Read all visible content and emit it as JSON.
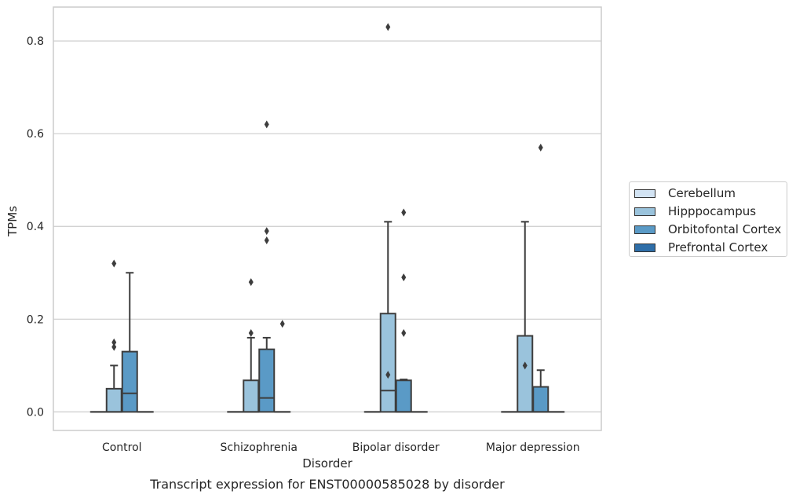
{
  "chart_data": {
    "type": "box",
    "title": "Transcript expression for ENST00000585028 by disorder",
    "xlabel": "Disorder",
    "ylabel": "TPMs",
    "ylim": [
      -0.04,
      0.873
    ],
    "yticks": [
      "0.0",
      "0.2",
      "0.4",
      "0.6",
      "0.8"
    ],
    "ytick_values": [
      0.0,
      0.2,
      0.4,
      0.6,
      0.8
    ],
    "categories": [
      "Control",
      "Schizophrenia",
      "Bipolar disorder",
      "Major depression"
    ],
    "grid": "horizontal",
    "legend_position": "right",
    "series": [
      {
        "name": "Cerebellum",
        "color": "#d2e3f3",
        "boxes": [
          {
            "q1": 0,
            "median": 0,
            "q3": 0,
            "whisker_low": 0,
            "whisker_high": 0,
            "outliers": []
          },
          {
            "q1": 0,
            "median": 0,
            "q3": 0,
            "whisker_low": 0,
            "whisker_high": 0,
            "outliers": []
          },
          {
            "q1": 0,
            "median": 0,
            "q3": 0,
            "whisker_low": 0,
            "whisker_high": 0,
            "outliers": []
          },
          {
            "q1": 0,
            "median": 0,
            "q3": 0,
            "whisker_low": 0,
            "whisker_high": 0,
            "outliers": []
          }
        ]
      },
      {
        "name": "Hipppocampus",
        "color": "#9ac3dc",
        "boxes": [
          {
            "q1": 0,
            "median": 0,
            "q3": 0.05,
            "whisker_low": 0,
            "whisker_high": 0.1,
            "outliers": [
              0.14,
              0.15,
              0.32
            ]
          },
          {
            "q1": 0,
            "median": 0,
            "q3": 0.068,
            "whisker_low": 0,
            "whisker_high": 0.16,
            "outliers": [
              0.17,
              0.28
            ]
          },
          {
            "q1": 0,
            "median": 0.046,
            "q3": 0.212,
            "whisker_low": 0,
            "whisker_high": 0.41,
            "outliers": [
              0.08,
              0.83
            ]
          },
          {
            "q1": 0,
            "median": 0,
            "q3": 0.164,
            "whisker_low": 0,
            "whisker_high": 0.41,
            "outliers": [
              0.1
            ]
          }
        ]
      },
      {
        "name": "Orbitofontal Cortex",
        "color": "#5a9ac6",
        "boxes": [
          {
            "q1": 0,
            "median": 0.04,
            "q3": 0.13,
            "whisker_low": 0,
            "whisker_high": 0.3,
            "outliers": []
          },
          {
            "q1": 0,
            "median": 0.03,
            "q3": 0.135,
            "whisker_low": 0,
            "whisker_high": 0.16,
            "outliers": [
              0.37,
              0.39,
              0.62
            ]
          },
          {
            "q1": 0,
            "median": 0,
            "q3": 0.068,
            "whisker_low": 0,
            "whisker_high": 0.07,
            "outliers": [
              0.17,
              0.29,
              0.43
            ]
          },
          {
            "q1": 0,
            "median": 0,
            "q3": 0.054,
            "whisker_low": 0,
            "whisker_high": 0.09,
            "outliers": [
              0.57
            ]
          }
        ]
      },
      {
        "name": "Prefrontal Cortex",
        "color": "#2e6ea8",
        "boxes": [
          {
            "q1": 0,
            "median": 0,
            "q3": 0,
            "whisker_low": 0,
            "whisker_high": 0,
            "outliers": []
          },
          {
            "q1": 0,
            "median": 0,
            "q3": 0,
            "whisker_low": 0,
            "whisker_high": 0,
            "outliers": [
              0.19
            ]
          },
          {
            "q1": 0,
            "median": 0,
            "q3": 0,
            "whisker_low": 0,
            "whisker_high": 0,
            "outliers": []
          },
          {
            "q1": 0,
            "median": 0,
            "q3": 0,
            "whisker_low": 0,
            "whisker_high": 0,
            "outliers": []
          }
        ]
      }
    ]
  }
}
